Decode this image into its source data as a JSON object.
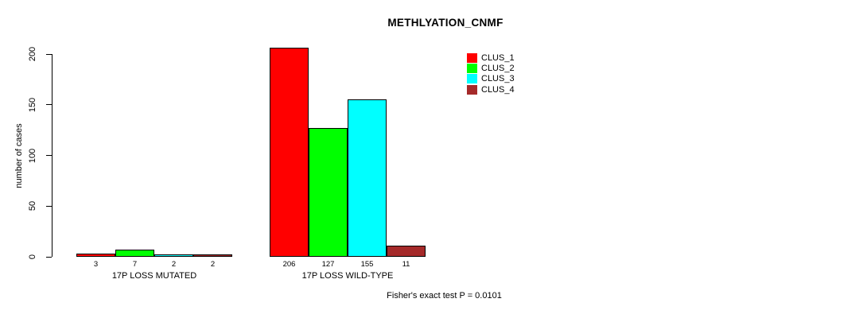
{
  "chart_data": {
    "type": "bar",
    "title": "METHLYATION_CNMF",
    "ylabel": "number of cases",
    "xlabel": "",
    "ylim": [
      0,
      200
    ],
    "yticks": [
      0,
      50,
      100,
      150,
      200
    ],
    "grid": false,
    "legend_position": "top-right-inside",
    "categories": [
      "17P LOSS MUTATED",
      "17P LOSS WILD-TYPE"
    ],
    "series": [
      {
        "name": "CLUS_1",
        "color": "#FF0000",
        "values": [
          3,
          206
        ]
      },
      {
        "name": "CLUS_2",
        "color": "#00FF00",
        "values": [
          7,
          127
        ]
      },
      {
        "name": "CLUS_3",
        "color": "#00FFFF",
        "values": [
          2,
          155
        ]
      },
      {
        "name": "CLUS_4",
        "color": "#A52A2A",
        "values": [
          2,
          11
        ]
      }
    ],
    "bar_value_labels": [
      [
        "3",
        "7",
        "2",
        "2"
      ],
      [
        "206",
        "127",
        "155",
        "11"
      ]
    ],
    "annotation": "Fisher's exact test P = 0.0101"
  },
  "colors": {
    "background": "#FFFFFF",
    "axis": "#000000",
    "text": "#000000",
    "bar_border": "#000000"
  }
}
